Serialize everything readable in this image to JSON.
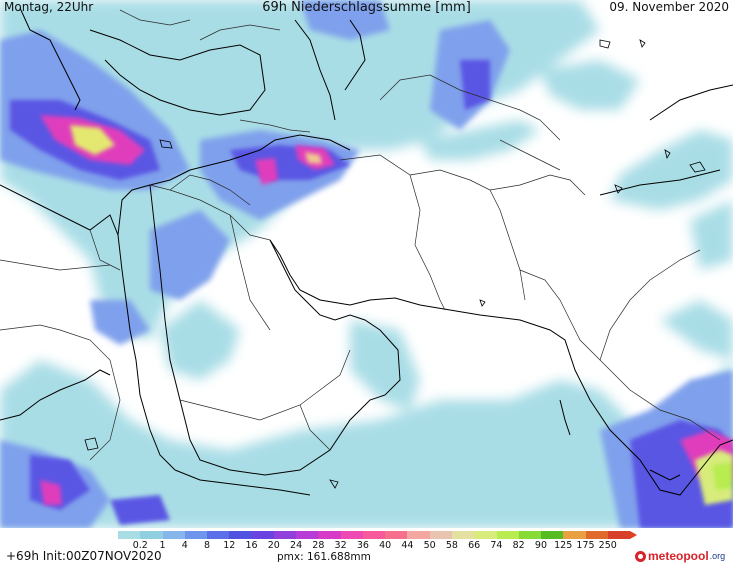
{
  "header": {
    "left": "Montag, 22Uhr",
    "title": "69h Niederschlagssumme [mm]",
    "right": "09. November 2020"
  },
  "legend": {
    "ticks": [
      "0.2",
      "1",
      "4",
      "8",
      "12",
      "16",
      "20",
      "24",
      "28",
      "32",
      "36",
      "40",
      "44",
      "50",
      "58",
      "66",
      "74",
      "82",
      "90",
      "125",
      "175",
      "250"
    ],
    "colors": [
      "#a9dde6",
      "#8fcfdf",
      "#86b6ec",
      "#6f94ec",
      "#5a6fe8",
      "#5252e0",
      "#6a44e0",
      "#9240dc",
      "#b83cd6",
      "#d63cc8",
      "#ee4ab4",
      "#f65a9a",
      "#f6708e",
      "#f4a6a0",
      "#e8c4b0",
      "#e4e0a0",
      "#d8ec7c",
      "#b8ec50",
      "#86dc34",
      "#56bc22",
      "#e8a040",
      "#e06a2c",
      "#d8402a"
    ],
    "arrow_color": "#e04020"
  },
  "footer": {
    "init": "+69h Init:00Z07NOV2020",
    "pmx": "pmx: 161.688mm",
    "logo_main": "meteopool",
    "logo_tld": ".org"
  },
  "map": {
    "region": "Middle East, Arabian Peninsula, Northeast Africa, South Asia",
    "field": "69h accumulated precipitation",
    "base_color": "#ffffff",
    "coastline_color": "#000000",
    "border_color": "#2a2a2a"
  }
}
